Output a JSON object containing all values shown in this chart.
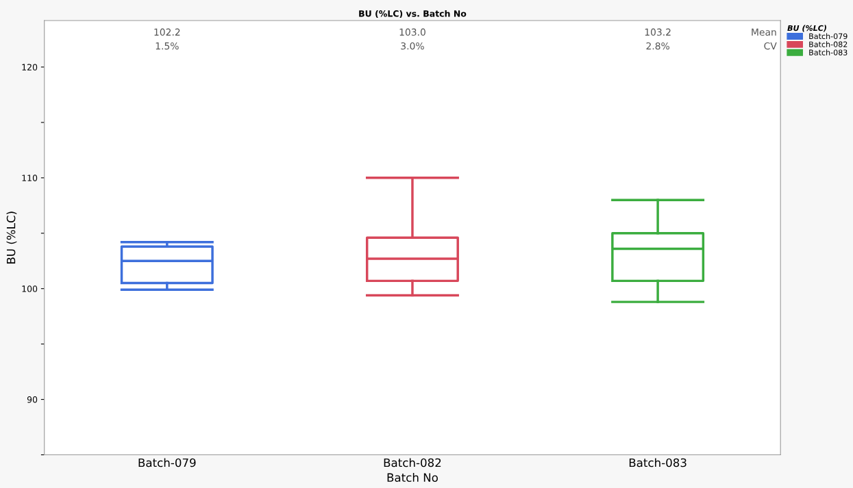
{
  "chart_data": {
    "type": "box",
    "title": "BU (%LC) vs. Batch No",
    "xlabel": "Batch No",
    "ylabel": "BU (%LC)",
    "legend_title": "BU (%LC)",
    "categories": [
      "Batch-079",
      "Batch-082",
      "Batch-083"
    ],
    "series": [
      {
        "name": "Batch-079",
        "color": "#3d6fdc",
        "boxes": [
          {
            "low": 99.9,
            "q1": 100.5,
            "median": 102.5,
            "q3": 103.8,
            "high": 104.2
          },
          null,
          null
        ]
      },
      {
        "name": "Batch-082",
        "color": "#d8475a",
        "boxes": [
          null,
          {
            "low": 99.4,
            "q1": 100.7,
            "median": 102.7,
            "q3": 104.6,
            "high": 110.0
          },
          null
        ]
      },
      {
        "name": "Batch-083",
        "color": "#3bad3f",
        "boxes": [
          null,
          null,
          {
            "low": 98.8,
            "q1": 100.7,
            "median": 103.6,
            "q3": 105.0,
            "high": 108.0
          }
        ]
      }
    ],
    "ylim": [
      85,
      124.2
    ],
    "yticks": [
      {
        "value": 85,
        "label": null
      },
      {
        "value": 90,
        "label": "90"
      },
      {
        "value": 95,
        "label": null
      },
      {
        "value": 100,
        "label": "100"
      },
      {
        "value": 105,
        "label": null
      },
      {
        "value": 110,
        "label": "110"
      },
      {
        "value": 115,
        "label": null
      },
      {
        "value": 120,
        "label": "120"
      }
    ],
    "annotations": [
      "102.2",
      "1.5%",
      "103.0",
      "3.0%",
      "103.2",
      "2.8%",
      "Mean",
      "CV"
    ],
    "grid": false,
    "legend": "right"
  }
}
